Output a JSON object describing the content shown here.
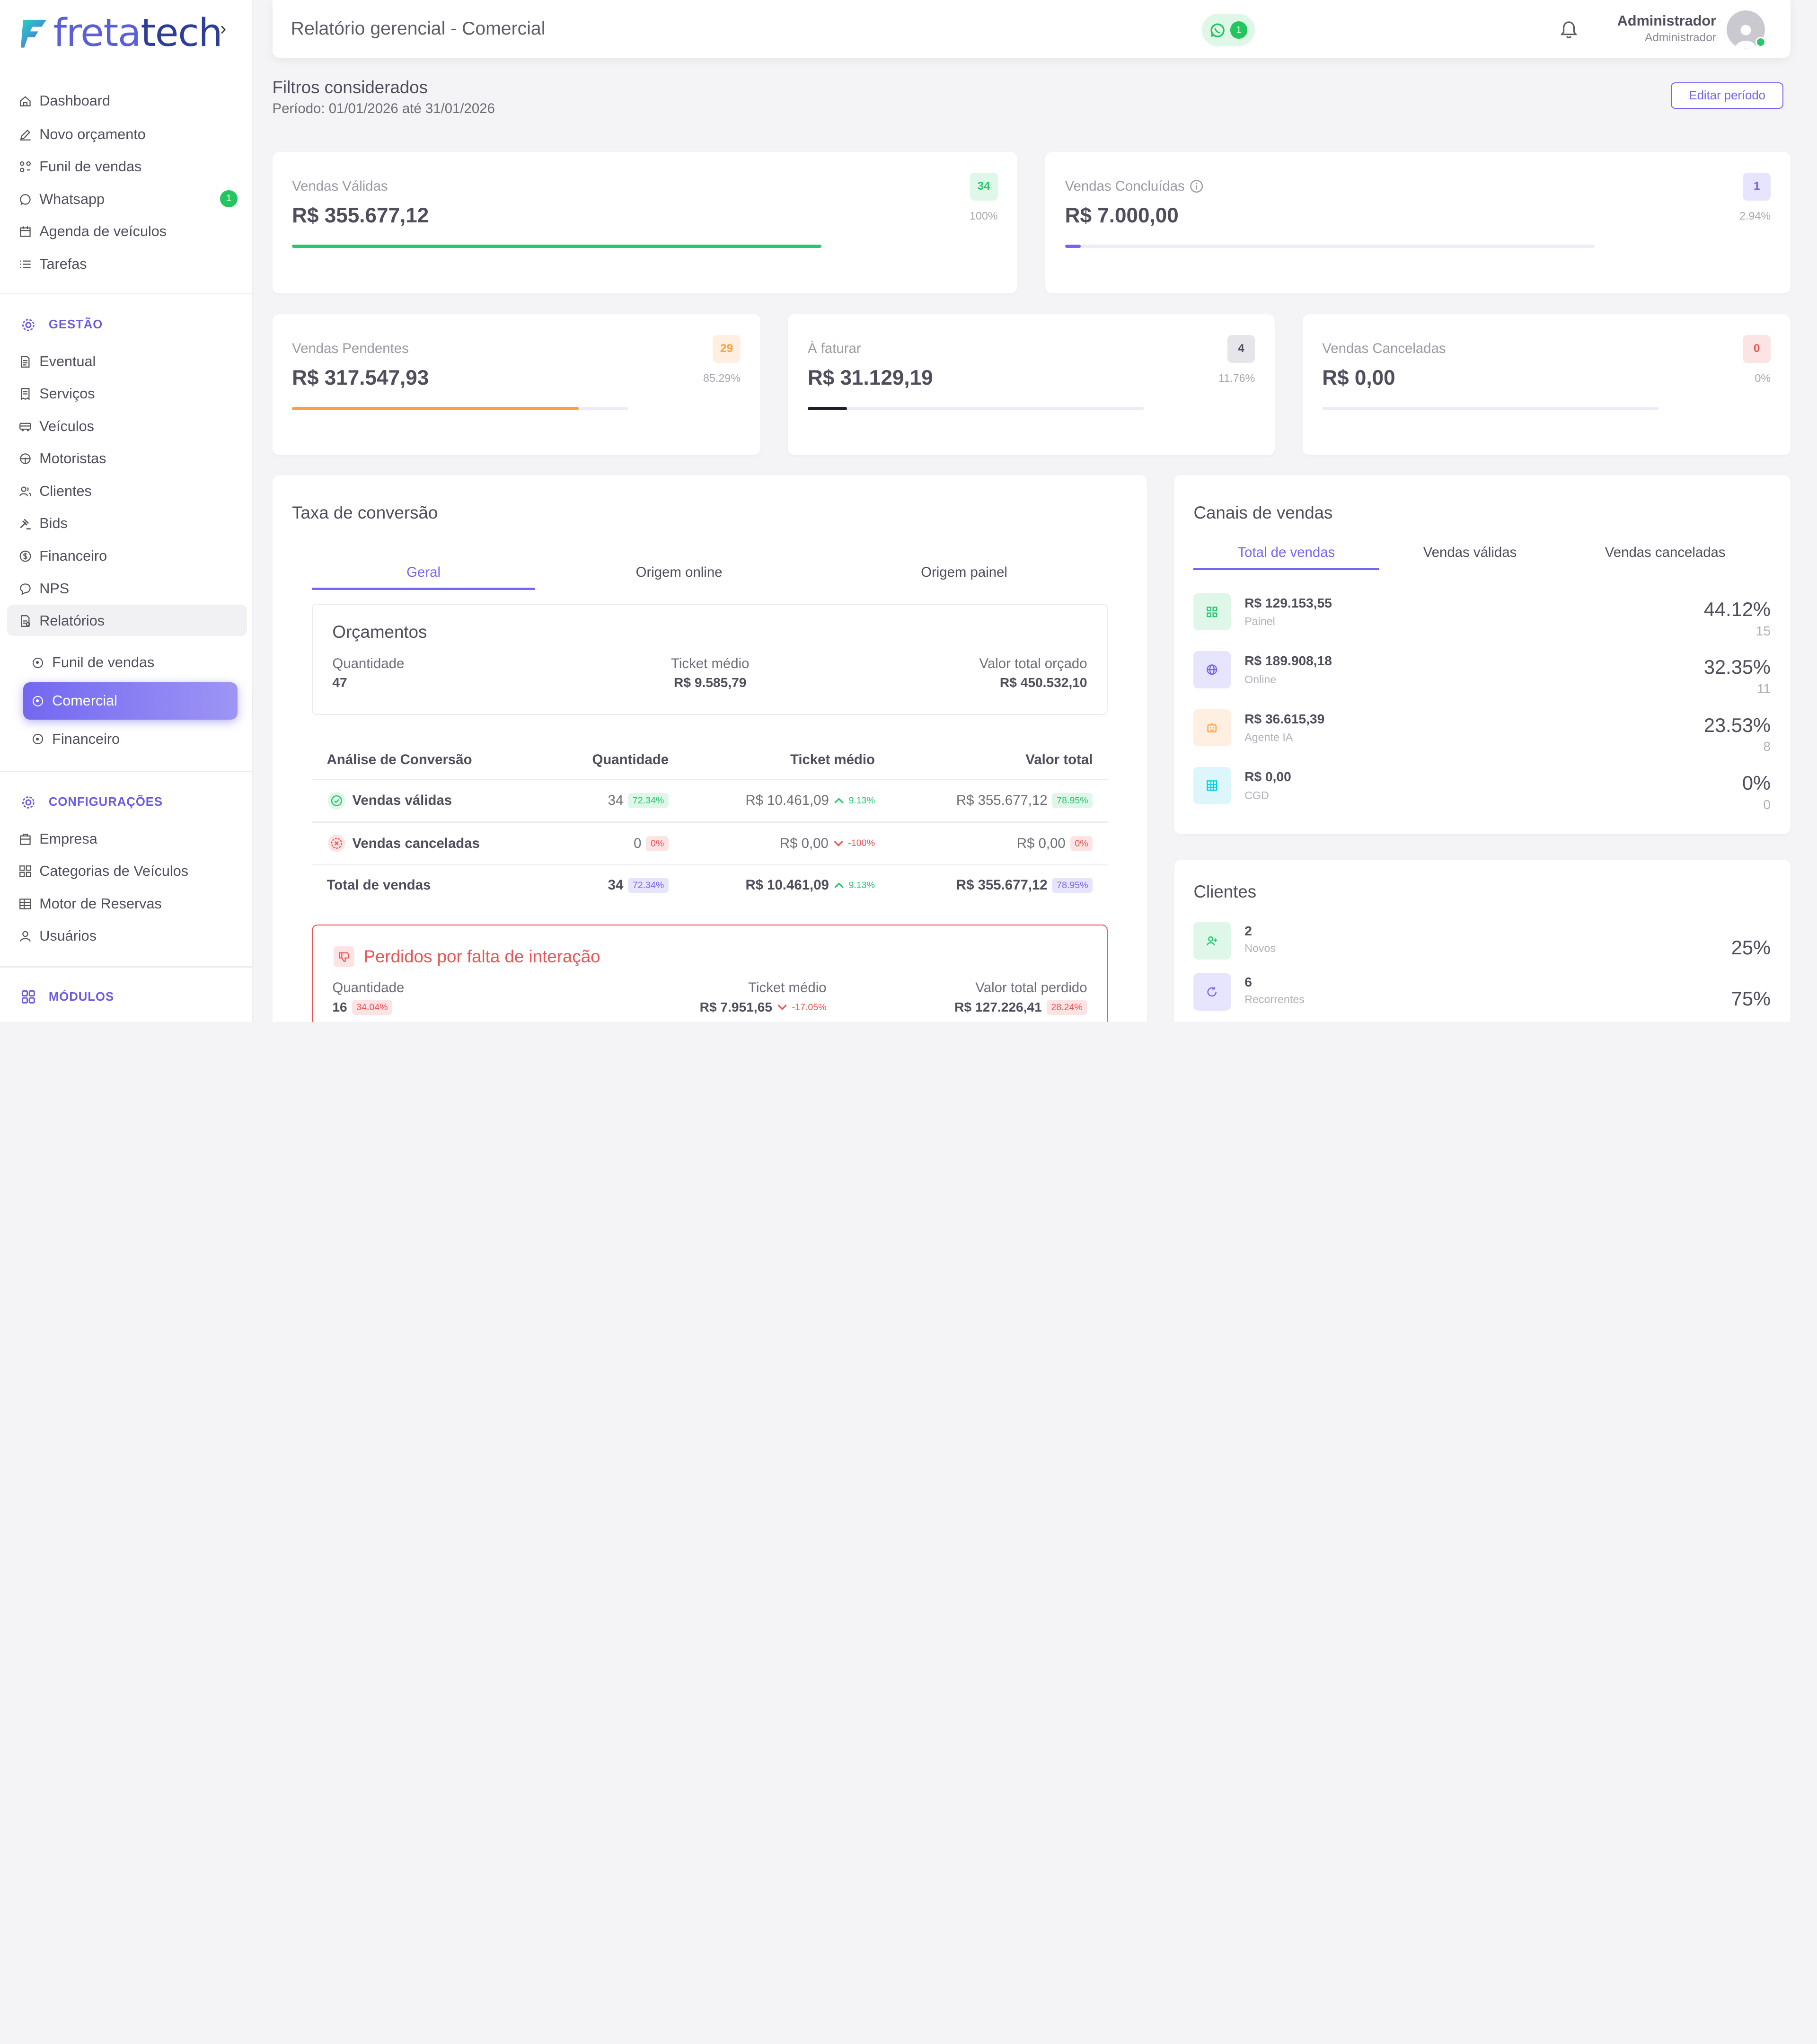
{
  "sidebar": {
    "logo": {
      "part1": "freta",
      "part2": "tech"
    },
    "main_items": [
      {
        "label": "Dashboard",
        "icon": "home-icon"
      },
      {
        "label": "Novo orçamento",
        "icon": "edit-icon"
      },
      {
        "label": "Funil de vendas",
        "icon": "funnel-icon"
      },
      {
        "label": "Whatsapp",
        "icon": "whatsapp-icon",
        "badge": "1"
      },
      {
        "label": "Agenda de veículos",
        "icon": "calendar-icon"
      },
      {
        "label": "Tarefas",
        "icon": "list-icon"
      }
    ],
    "gestao_title": "GESTÃO",
    "gestao_items": [
      {
        "label": "Eventual"
      },
      {
        "label": "Serviços"
      },
      {
        "label": "Veículos"
      },
      {
        "label": "Motoristas"
      },
      {
        "label": "Clientes"
      },
      {
        "label": "Bids"
      },
      {
        "label": "Financeiro"
      },
      {
        "label": "NPS"
      },
      {
        "label": "Relatórios"
      }
    ],
    "relatorios_sub": [
      {
        "label": "Funil de vendas"
      },
      {
        "label": "Comercial"
      },
      {
        "label": "Financeiro"
      }
    ],
    "config_title": "CONFIGURAÇÕES",
    "config_items": [
      {
        "label": "Empresa"
      },
      {
        "label": "Categorias de Veículos"
      },
      {
        "label": "Motor de Reservas"
      },
      {
        "label": "Usuários"
      }
    ],
    "modulos_title": "MÓDULOS"
  },
  "header": {
    "title": "Relatório gerencial - Comercial",
    "whatsapp_count": "1",
    "user_name": "Administrador",
    "user_role": "Administrador"
  },
  "filters": {
    "title": "Filtros considerados",
    "period": "Período: 01/01/2026 até 31/01/2026",
    "edit_button": "Editar período"
  },
  "kpis": {
    "validas": {
      "label": "Vendas Válidas",
      "value": "R$ 355.677,12",
      "count": "34",
      "pct": "100%",
      "fill": 1.0,
      "color": "#28c76f"
    },
    "concluidas": {
      "label": "Vendas Concluídas",
      "value": "R$ 7.000,00",
      "count": "1",
      "pct": "2.94%",
      "fill": 0.0294,
      "color": "#7367f0"
    },
    "pendentes": {
      "label": "Vendas Pendentes",
      "value": "R$ 317.547,93",
      "count": "29",
      "pct": "85.29%",
      "fill": 0.8529,
      "color": "#ff9f43"
    },
    "faturar": {
      "label": "À faturar",
      "value": "R$ 31.129,19",
      "count": "4",
      "pct": "11.76%",
      "fill": 0.1176,
      "color": "#1e1e2e"
    },
    "canceladas": {
      "label": "Vendas Canceladas",
      "value": "R$ 0,00",
      "count": "0",
      "pct": "0%",
      "fill": 0,
      "color": "#ea5455"
    }
  },
  "conversion": {
    "title": "Taxa de conversão",
    "tabs": [
      "Geral",
      "Origem online",
      "Origem painel"
    ],
    "orcamentos": {
      "title": "Orçamentos",
      "qty_label": "Quantidade",
      "qty": "47",
      "ticket_label": "Ticket médio",
      "ticket": "R$ 9.585,79",
      "total_label": "Valor total orçado",
      "total": "R$ 450.532,10"
    },
    "table": {
      "headers": [
        "Análise de Conversão",
        "Quantidade",
        "Ticket médio",
        "Valor total"
      ],
      "rows": [
        {
          "name": "Vendas válidas",
          "qty": "34",
          "qty_pct": "72.34%",
          "ticket": "R$ 10.461,09",
          "ticket_delta": "9.13%",
          "total": "R$ 355.677,12",
          "total_pct": "78.95%"
        },
        {
          "name": "Vendas canceladas",
          "qty": "0",
          "qty_pct": "0%",
          "ticket": "R$ 0,00",
          "ticket_delta": "-100%",
          "total": "R$ 0,00",
          "total_pct": "0%"
        }
      ],
      "total_row": {
        "name": "Total de vendas",
        "qty": "34",
        "qty_pct": "72.34%",
        "ticket": "R$ 10.461,09",
        "ticket_delta": "9.13%",
        "total": "R$ 355.677,12",
        "total_pct": "78.95%"
      }
    },
    "lost": {
      "title": "Perdidos por falta de interação",
      "qty_label": "Quantidade",
      "qty": "16",
      "qty_pct": "34.04%",
      "ticket_label": "Ticket médio",
      "ticket": "R$ 7.951,65",
      "ticket_delta": "-17.05%",
      "total_label": "Valor total perdido",
      "total": "R$ 127.226,41",
      "total_pct": "28.24%"
    }
  },
  "channels": {
    "title": "Canais de vendas",
    "tabs": [
      "Total de vendas",
      "Vendas válidas",
      "Vendas canceladas"
    ],
    "items": [
      {
        "value": "R$ 129.153,55",
        "name": "Painel",
        "pct": "44.12%",
        "count": "15",
        "icon": "grid-icon"
      },
      {
        "value": "R$ 189.908,18",
        "name": "Online",
        "pct": "32.35%",
        "count": "11",
        "icon": "globe-icon"
      },
      {
        "value": "R$ 36.615,39",
        "name": "Agente IA",
        "pct": "23.53%",
        "count": "8",
        "icon": "robot-icon"
      },
      {
        "value": "R$ 0,00",
        "name": "CGD",
        "pct": "0%",
        "count": "0",
        "icon": "qr-icon"
      }
    ]
  },
  "clients": {
    "title": "Clientes",
    "items": [
      {
        "count": "2",
        "label": "Novos",
        "pct": "25%"
      },
      {
        "count": "6",
        "label": "Recorrentes",
        "pct": "75%"
      }
    ]
  }
}
